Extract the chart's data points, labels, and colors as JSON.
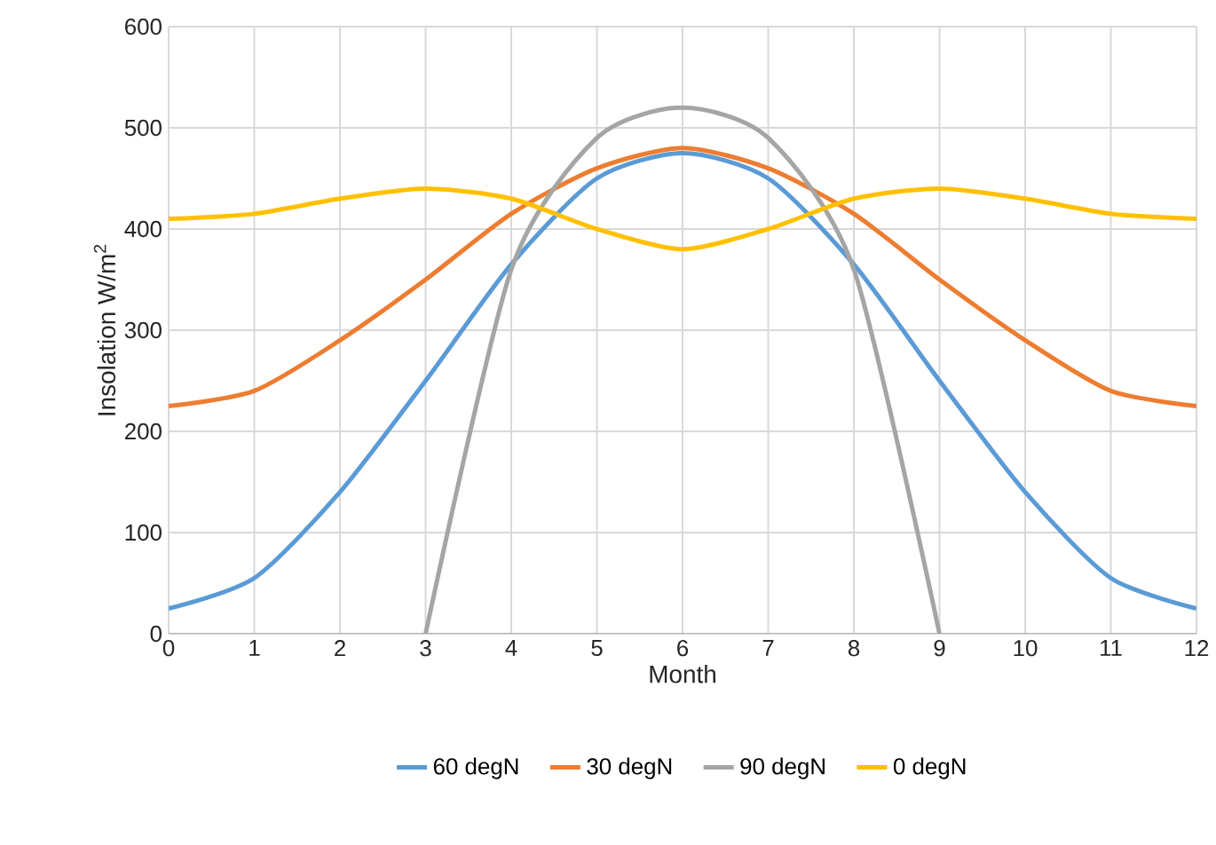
{
  "chart_data": {
    "type": "line",
    "xlabel": "Month",
    "ylabel": "Insolation W/m$^{2}$",
    "x": [
      0,
      1,
      2,
      3,
      4,
      5,
      6,
      7,
      8,
      9,
      10,
      11,
      12
    ],
    "series": [
      {
        "name": "60 degN",
        "color": "#5b9bd5",
        "values": [
          25,
          55,
          140,
          250,
          365,
          450,
          475,
          450,
          365,
          250,
          140,
          55,
          25
        ]
      },
      {
        "name": "30 degN",
        "color": "#ed7d31",
        "values": [
          225,
          240,
          290,
          350,
          415,
          460,
          480,
          460,
          415,
          350,
          290,
          240,
          225
        ]
      },
      {
        "name": "90 degN",
        "color": "#a5a5a5",
        "x": [
          3,
          4,
          5,
          6,
          7,
          8,
          9
        ],
        "values": [
          0,
          360,
          490,
          520,
          490,
          360,
          0
        ]
      },
      {
        "name": "0 degN",
        "color": "#ffc000",
        "values": [
          410,
          415,
          430,
          440,
          430,
          400,
          380,
          400,
          430,
          440,
          430,
          415,
          410
        ]
      }
    ],
    "xlim": [
      0,
      12
    ],
    "xticks": [
      0,
      1,
      2,
      3,
      4,
      5,
      6,
      7,
      8,
      9,
      10,
      11,
      12
    ],
    "ylim": [
      0,
      600
    ],
    "yticks": [
      0,
      100,
      200,
      300,
      400,
      500,
      600
    ],
    "grid": true,
    "legend": "bottom",
    "marker": "none",
    "line_style": "solid"
  }
}
